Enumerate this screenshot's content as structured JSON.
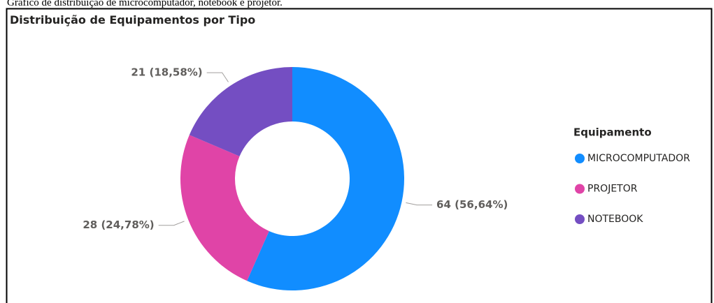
{
  "caption": "Gráfico de distribuição de microcomputador, notebook e projetor.",
  "chart_data": {
    "type": "pie",
    "donut": true,
    "title": "Distribuição de Equipamentos por Tipo",
    "legend_title": "Equipamento",
    "legend": "right",
    "categories": [
      "MICROCOMPUTADOR",
      "PROJETOR",
      "NOTEBOOK"
    ],
    "values": [
      64,
      28,
      21
    ],
    "value_labels": [
      "64 (56,64%)",
      "28 (24,78%)",
      "21 (18,58%)"
    ],
    "colors": [
      "#118dff",
      "#e044a7",
      "#744ec2"
    ]
  }
}
